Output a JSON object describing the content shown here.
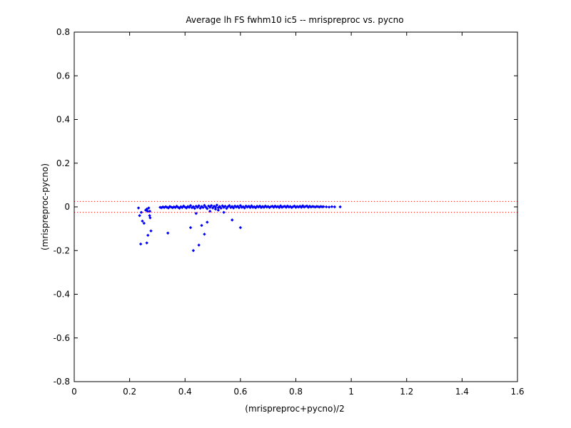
{
  "chart_data": {
    "type": "scatter",
    "title": "Average lh FS fwhm10 ic5 -- mrispreproc vs. pycno",
    "xlabel": "(mrispreproc+pycno)/2",
    "ylabel": "(mrispreproc-pycno)",
    "xlim": [
      0,
      1.6
    ],
    "ylim": [
      -0.8,
      0.8
    ],
    "x_ticks": [
      0,
      0.2,
      0.4,
      0.6,
      0.8,
      1,
      1.2,
      1.4,
      1.6
    ],
    "x_tick_labels": [
      "0",
      "0.2",
      "0.4",
      "0.6",
      "0.8",
      "1",
      "1.2",
      "1.4",
      "1.6"
    ],
    "y_ticks": [
      -0.8,
      -0.6,
      -0.4,
      -0.2,
      0,
      0.2,
      0.4,
      0.6,
      0.8
    ],
    "y_tick_labels": [
      "-0.8",
      "-0.6",
      "-0.4",
      "-0.2",
      "0",
      "0.2",
      "0.4",
      "0.6",
      "0.8"
    ],
    "grid": false,
    "reference_lines": [
      0.025,
      -0.025
    ],
    "colors": {
      "points": "#0000ff",
      "reference_lines": "#ff0000",
      "axes": "#000000"
    },
    "series": [
      {
        "x": [
          0.232,
          0.236,
          0.242,
          0.246,
          0.252,
          0.258,
          0.262,
          0.266,
          0.269,
          0.272,
          0.274,
          0.277,
          0.24,
          0.262,
          0.273,
          0.265,
          0.338,
          0.42,
          0.43,
          0.44,
          0.45,
          0.47,
          0.46,
          0.49,
          0.48,
          0.51,
          0.57,
          0.6,
          0.54,
          0.52
        ],
        "y": [
          -0.005,
          -0.04,
          -0.025,
          -0.065,
          -0.075,
          -0.015,
          -0.01,
          -0.13,
          -0.005,
          -0.04,
          -0.05,
          -0.11,
          -0.17,
          -0.165,
          -0.02,
          -0.02,
          -0.12,
          -0.095,
          -0.2,
          -0.03,
          -0.175,
          -0.125,
          -0.085,
          -0.02,
          -0.07,
          -0.01,
          -0.06,
          -0.095,
          -0.025,
          -0.015
        ]
      },
      {
        "x": [
          0.31,
          0.315,
          0.32,
          0.325,
          0.33,
          0.335,
          0.34,
          0.345,
          0.35,
          0.355,
          0.36,
          0.365,
          0.37,
          0.375,
          0.38,
          0.385,
          0.39,
          0.395,
          0.4,
          0.405,
          0.41,
          0.415,
          0.42,
          0.425,
          0.43,
          0.435,
          0.44,
          0.445,
          0.45,
          0.455,
          0.46,
          0.465,
          0.47,
          0.475,
          0.48,
          0.485,
          0.49,
          0.495,
          0.5,
          0.505,
          0.51,
          0.515,
          0.52,
          0.525,
          0.53,
          0.535,
          0.54,
          0.545,
          0.55,
          0.555,
          0.56,
          0.565,
          0.57,
          0.575,
          0.58,
          0.585,
          0.59,
          0.595,
          0.6,
          0.605,
          0.61,
          0.615,
          0.62,
          0.625,
          0.63,
          0.635,
          0.64,
          0.645,
          0.65,
          0.655,
          0.66,
          0.665,
          0.67,
          0.675,
          0.68,
          0.685,
          0.69,
          0.695,
          0.7,
          0.705,
          0.71,
          0.715,
          0.72,
          0.725,
          0.73,
          0.735,
          0.74,
          0.745,
          0.75,
          0.755,
          0.76,
          0.765,
          0.77,
          0.775,
          0.78,
          0.785,
          0.79,
          0.795,
          0.8,
          0.805,
          0.81,
          0.815,
          0.82,
          0.825,
          0.83,
          0.835,
          0.84,
          0.845,
          0.85,
          0.855,
          0.86,
          0.865,
          0.87,
          0.875,
          0.88,
          0.885,
          0.89,
          0.895,
          0.9,
          0.91,
          0.92,
          0.93,
          0.94,
          0.96
        ],
        "y": [
          -0.002,
          -0.004,
          0.0,
          -0.003,
          0.001,
          -0.002,
          -0.005,
          0.002,
          -0.001,
          -0.004,
          0.0,
          -0.003,
          0.003,
          -0.002,
          -0.006,
          0.001,
          -0.003,
          0.004,
          -0.001,
          -0.005,
          0.002,
          -0.002,
          0.006,
          -0.004,
          0.001,
          -0.007,
          0.003,
          -0.002,
          0.005,
          -0.006,
          0.002,
          -0.003,
          0.007,
          -0.001,
          -0.008,
          0.004,
          -0.002,
          0.006,
          -0.005,
          0.003,
          -0.001,
          0.008,
          -0.004,
          0.002,
          -0.006,
          0.005,
          -0.002,
          0.003,
          -0.007,
          0.001,
          0.006,
          -0.003,
          0.002,
          -0.005,
          0.004,
          -0.001,
          0.003,
          -0.004,
          0.006,
          -0.002,
          0.001,
          -0.005,
          0.004,
          -0.001,
          0.003,
          -0.003,
          0.005,
          -0.002,
          0.001,
          -0.004,
          0.003,
          -0.001,
          0.004,
          -0.003,
          0.002,
          -0.002,
          0.004,
          -0.001,
          0.002,
          -0.003,
          0.001,
          0.003,
          -0.002,
          0.004,
          -0.001,
          0.002,
          -0.003,
          0.005,
          -0.002,
          0.001,
          0.003,
          -0.002,
          0.004,
          -0.001,
          0.002,
          -0.003,
          0.001,
          0.004,
          -0.002,
          0.002,
          -0.001,
          0.003,
          -0.002,
          0.005,
          -0.001,
          0.002,
          0.004,
          -0.002,
          0.003,
          -0.001,
          0.002,
          0.001,
          -0.001,
          0.002,
          0.001,
          -0.001,
          0.002,
          0.0,
          0.001,
          0.0,
          -0.001,
          0.001,
          0.0,
          0.0
        ]
      }
    ]
  }
}
